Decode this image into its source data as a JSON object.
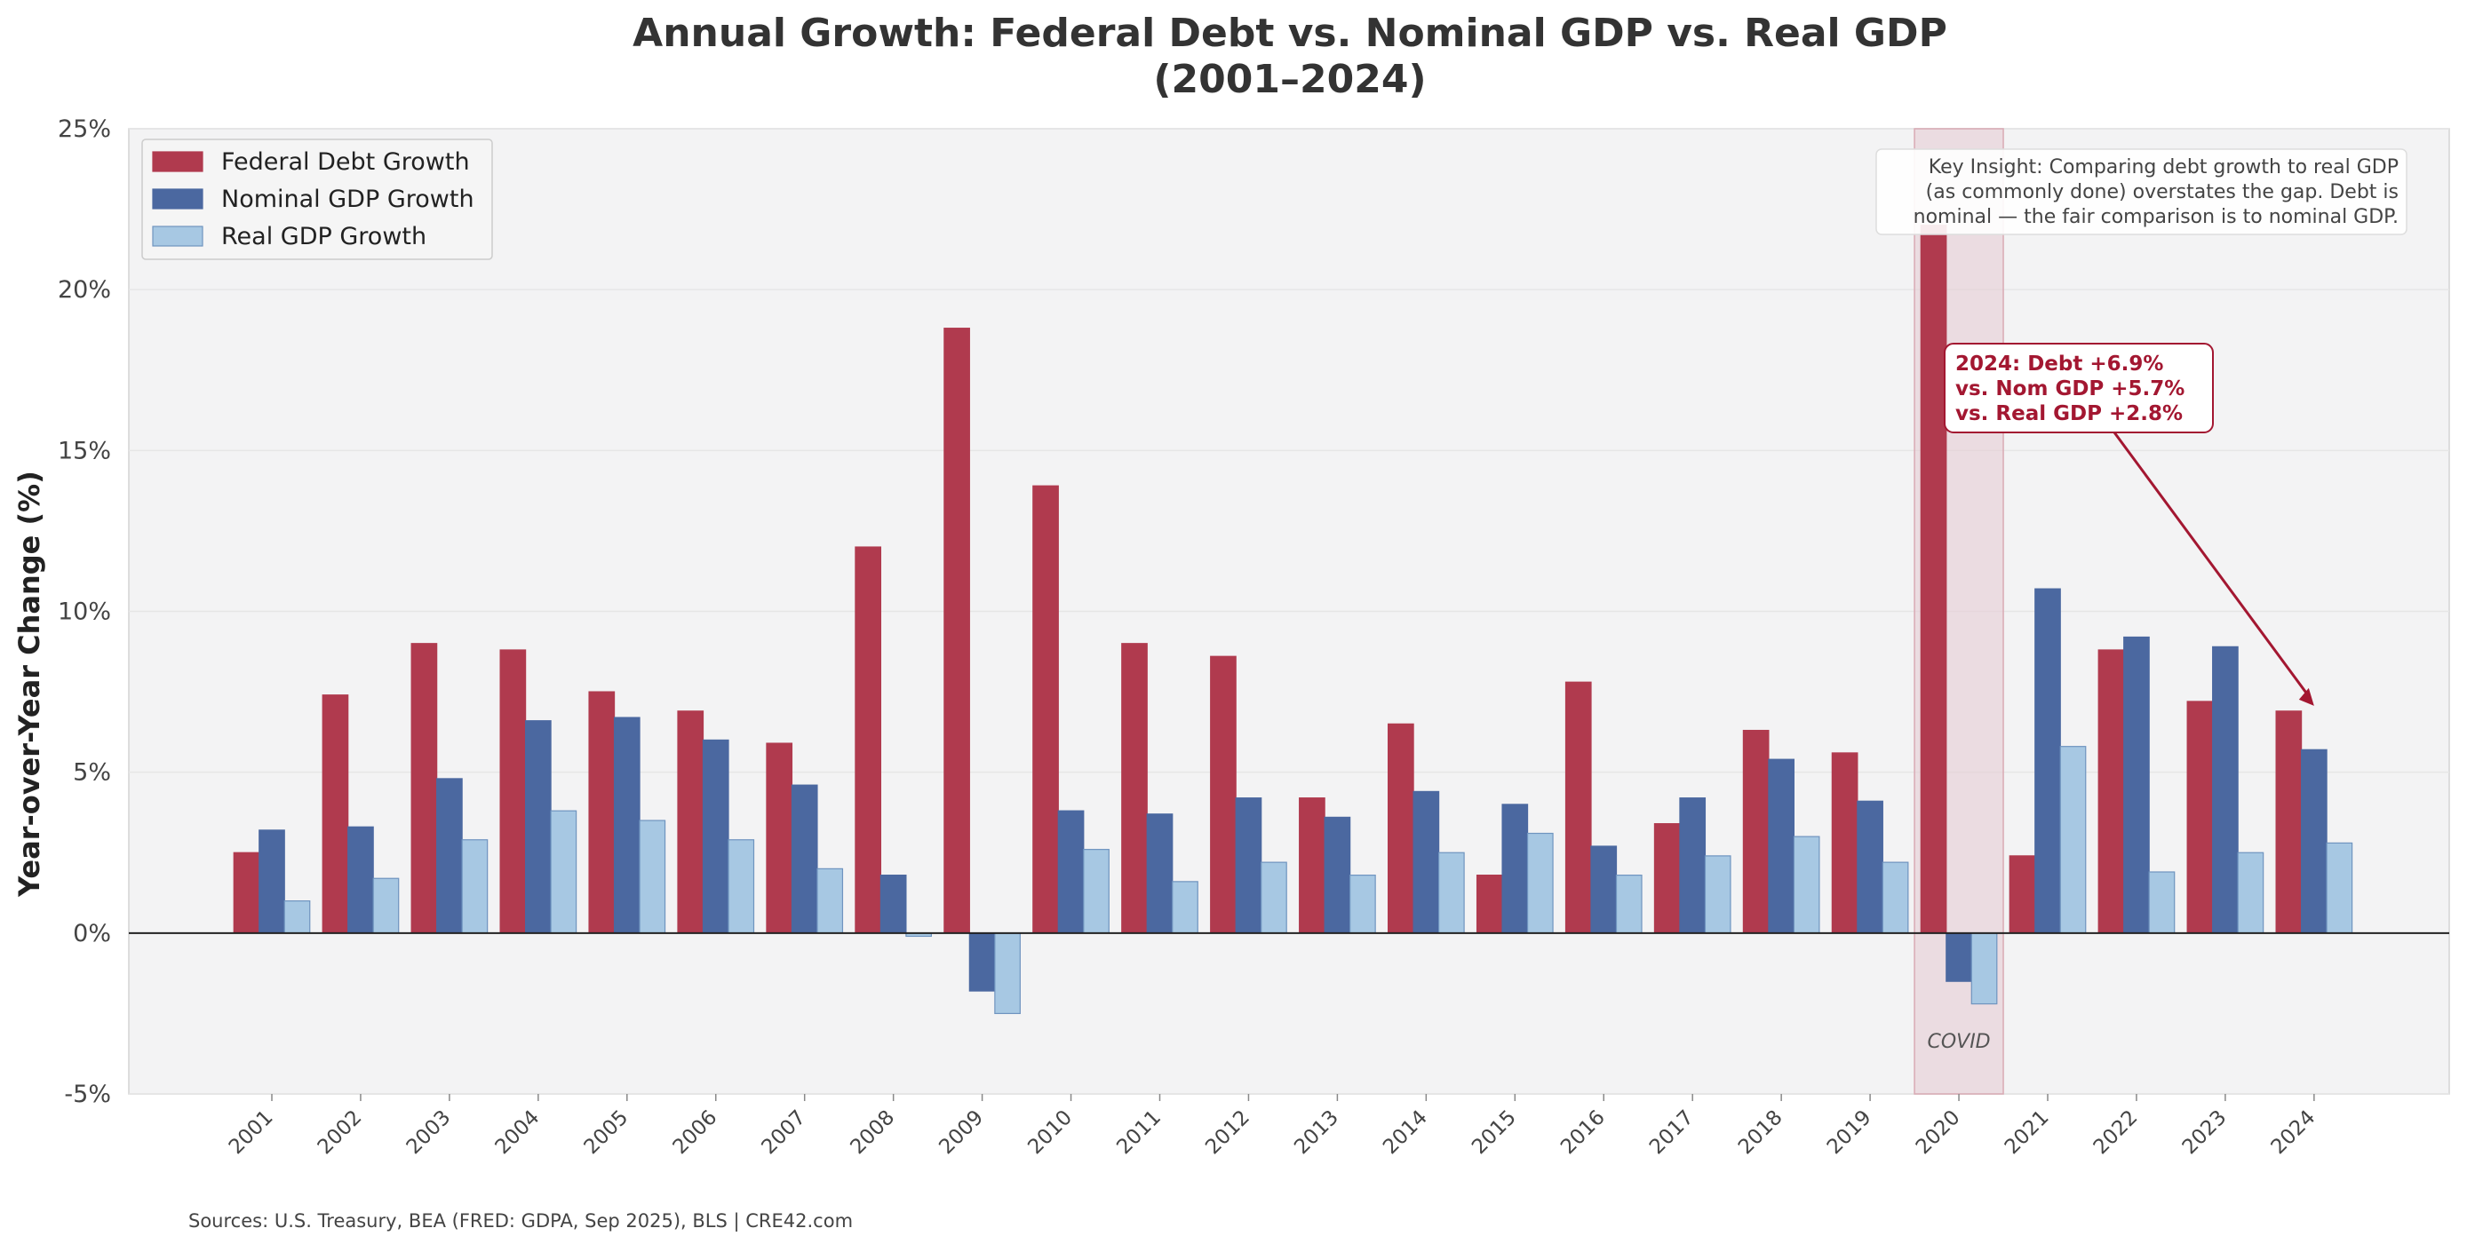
{
  "chart_data": {
    "type": "bar",
    "title_line1": "Annual Growth: Federal Debt vs. Nominal GDP vs. Real GDP",
    "title_line2": "(2001–2024)",
    "xlabel": "",
    "ylabel": "Year-over-Year Change (%)",
    "ylim": [
      -5,
      25
    ],
    "yticks": [
      -5,
      0,
      5,
      10,
      15,
      20,
      25
    ],
    "ytick_labels": [
      "-5%",
      "0%",
      "5%",
      "10%",
      "15%",
      "20%",
      "25%"
    ],
    "grid": true,
    "legend_position": "top-left",
    "categories": [
      "2001",
      "2002",
      "2003",
      "2004",
      "2005",
      "2006",
      "2007",
      "2008",
      "2009",
      "2010",
      "2011",
      "2012",
      "2013",
      "2014",
      "2015",
      "2016",
      "2017",
      "2018",
      "2019",
      "2020",
      "2021",
      "2022",
      "2023",
      "2024"
    ],
    "series": [
      {
        "name": "Federal Debt Growth",
        "color": "#b03a4e",
        "edge": "#b03a4e",
        "values": [
          2.5,
          7.4,
          9.0,
          8.8,
          7.5,
          6.9,
          5.9,
          12.0,
          18.8,
          13.9,
          9.0,
          8.6,
          4.2,
          6.5,
          1.8,
          7.8,
          3.4,
          6.3,
          5.6,
          22.0,
          2.4,
          8.8,
          7.2,
          6.9
        ]
      },
      {
        "name": "Nominal GDP Growth",
        "color": "#4b68a0",
        "edge": "#4b68a0",
        "values": [
          3.2,
          3.3,
          4.8,
          6.6,
          6.7,
          6.0,
          4.6,
          1.8,
          -1.8,
          3.8,
          3.7,
          4.2,
          3.6,
          4.4,
          4.0,
          2.7,
          4.2,
          5.4,
          4.1,
          -1.5,
          10.7,
          9.2,
          8.9,
          5.7
        ]
      },
      {
        "name": "Real GDP Growth",
        "color": "#a7c8e3",
        "edge": "#6f94bf",
        "values": [
          1.0,
          1.7,
          2.9,
          3.8,
          3.5,
          2.9,
          2.0,
          -0.1,
          -2.5,
          2.6,
          1.6,
          2.2,
          1.8,
          2.5,
          3.1,
          1.8,
          2.4,
          3.0,
          2.2,
          -2.2,
          5.8,
          1.9,
          2.5,
          2.8
        ]
      }
    ],
    "highlight": {
      "category": "2020",
      "label": "COVID",
      "color": "#e6cdd3"
    },
    "insight_box": {
      "lines": [
        "Key Insight: Comparing debt growth to real GDP",
        "(as commonly done) overstates the gap. Debt is",
        "nominal — the fair comparison is to nominal GDP."
      ]
    },
    "callout": {
      "lines": [
        "2024: Debt +6.9%",
        "vs. Nom GDP +5.7%",
        "vs. Real GDP +2.8%"
      ],
      "target_category": "2024",
      "target_value": 6.9,
      "color": "#a31731"
    },
    "source": "Sources: U.S. Treasury, BEA (FRED: GDPA, Sep 2025), BLS  |  CRE42.com"
  }
}
